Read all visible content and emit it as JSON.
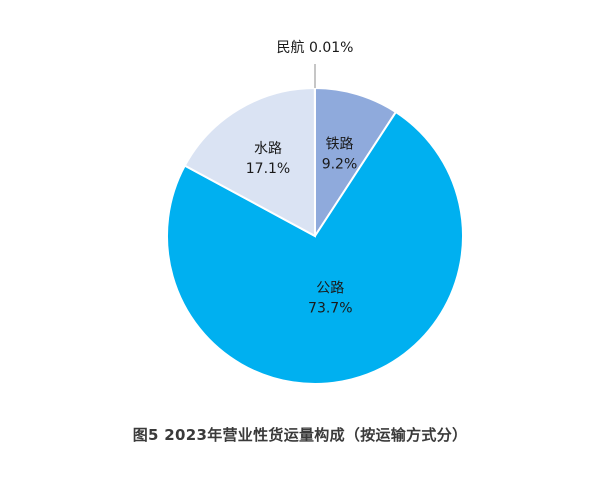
{
  "chart_data": {
    "type": "pie",
    "title": "图5   2023年营业性货运量构成（按运输方式分）",
    "slices": [
      {
        "name": "铁路",
        "value": 9.2,
        "label": "9.2%",
        "color": "#8FAADC"
      },
      {
        "name": "公路",
        "value": 73.7,
        "label": "73.7%",
        "color": "#00B0F0"
      },
      {
        "name": "水路",
        "value": 17.1,
        "label": "17.1%",
        "color": "#DAE3F3"
      },
      {
        "name": "民航",
        "value": 0.01,
        "label": "0.01%",
        "color": "#4472C4"
      }
    ],
    "start_angle": "12 o'clock",
    "direction": "clockwise",
    "separator_color": "#ffffff"
  }
}
